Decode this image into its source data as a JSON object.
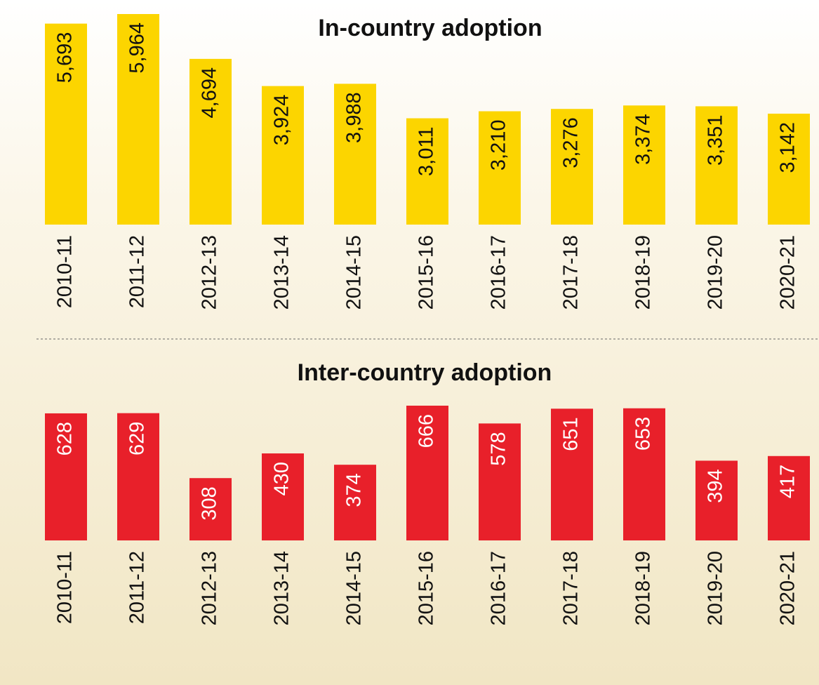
{
  "chart_data": [
    {
      "type": "bar",
      "title": "In-country adoption",
      "categories": [
        "2010-11",
        "2011-12",
        "2012-13",
        "2013-14",
        "2014-15",
        "2015-16",
        "2016-17",
        "2017-18",
        "2018-19",
        "2019-20",
        "2020-21"
      ],
      "values": [
        5693,
        5964,
        4694,
        3924,
        3988,
        3011,
        3210,
        3276,
        3374,
        3351,
        3142
      ],
      "value_labels": [
        "5,693",
        "5,964",
        "4,694",
        "3,924",
        "3,988",
        "3,011",
        "3,210",
        "3,276",
        "3,374",
        "3,351",
        "3,142"
      ],
      "color": "#fcd500",
      "label_color": "#111111"
    },
    {
      "type": "bar",
      "title": "Inter-country adoption",
      "categories": [
        "2010-11",
        "2011-12",
        "2012-13",
        "2013-14",
        "2014-15",
        "2015-16",
        "2016-17",
        "2017-18",
        "2018-19",
        "2019-20",
        "2020-21"
      ],
      "values": [
        628,
        629,
        308,
        430,
        374,
        666,
        578,
        651,
        653,
        394,
        417
      ],
      "color": "#e8202a",
      "label_color": "#ffffff"
    }
  ]
}
